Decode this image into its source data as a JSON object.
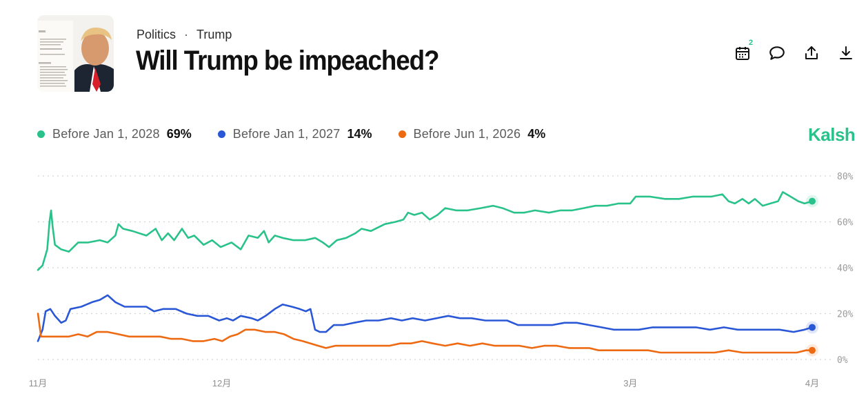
{
  "header": {
    "breadcrumb": [
      "Politics",
      "Trump"
    ],
    "breadcrumb_separator": "·",
    "title": "Will Trump be impeached?",
    "thumbnail_alt": "Trump photo with document"
  },
  "actions": {
    "calendar_badge": "2",
    "icons": [
      "calendar-icon",
      "comment-icon",
      "share-icon",
      "download-icon"
    ]
  },
  "brand": "Kalsh",
  "colors": {
    "green": "#28c28a",
    "blue": "#2a57d6",
    "orange": "#ee6a12",
    "grid": "#d4d4d4"
  },
  "chart_data": {
    "type": "line",
    "y_ticks": [
      "80%",
      "60%",
      "40%",
      "20%",
      "0%"
    ],
    "y_tick_values": [
      80,
      60,
      40,
      20,
      0
    ],
    "ylim": [
      0,
      80
    ],
    "x_ticks": [
      {
        "label": "11月",
        "t": 0.0
      },
      {
        "label": "12月",
        "t": 0.2373
      },
      {
        "label": "3月",
        "t": 0.7652
      },
      {
        "label": "4月",
        "t": 1.0
      }
    ],
    "legend_position": "top-left",
    "series": [
      {
        "name": "Before Jan 1, 2028",
        "display": "69%",
        "color": "#28c28a",
        "last": 69,
        "points": [
          [
            0.0,
            39
          ],
          [
            0.006,
            41
          ],
          [
            0.012,
            48
          ],
          [
            0.015,
            60
          ],
          [
            0.017,
            65
          ],
          [
            0.019,
            58
          ],
          [
            0.022,
            50
          ],
          [
            0.03,
            48
          ],
          [
            0.04,
            47
          ],
          [
            0.052,
            51
          ],
          [
            0.065,
            51
          ],
          [
            0.08,
            52
          ],
          [
            0.09,
            51
          ],
          [
            0.1,
            54
          ],
          [
            0.104,
            59
          ],
          [
            0.11,
            57
          ],
          [
            0.122,
            56
          ],
          [
            0.14,
            54
          ],
          [
            0.152,
            57
          ],
          [
            0.16,
            52
          ],
          [
            0.168,
            55
          ],
          [
            0.176,
            52
          ],
          [
            0.186,
            57
          ],
          [
            0.194,
            53
          ],
          [
            0.202,
            54
          ],
          [
            0.214,
            50
          ],
          [
            0.225,
            52
          ],
          [
            0.236,
            49
          ],
          [
            0.25,
            51
          ],
          [
            0.262,
            48
          ],
          [
            0.272,
            54
          ],
          [
            0.284,
            53
          ],
          [
            0.292,
            56
          ],
          [
            0.298,
            51
          ],
          [
            0.306,
            54
          ],
          [
            0.316,
            53
          ],
          [
            0.33,
            52
          ],
          [
            0.345,
            52
          ],
          [
            0.358,
            53
          ],
          [
            0.368,
            51
          ],
          [
            0.376,
            49
          ],
          [
            0.386,
            52
          ],
          [
            0.398,
            53
          ],
          [
            0.41,
            55
          ],
          [
            0.418,
            57
          ],
          [
            0.43,
            56
          ],
          [
            0.448,
            59
          ],
          [
            0.462,
            60
          ],
          [
            0.472,
            61
          ],
          [
            0.478,
            64
          ],
          [
            0.486,
            63
          ],
          [
            0.496,
            64
          ],
          [
            0.506,
            61
          ],
          [
            0.516,
            63
          ],
          [
            0.526,
            66
          ],
          [
            0.54,
            65
          ],
          [
            0.555,
            65
          ],
          [
            0.572,
            66
          ],
          [
            0.588,
            67
          ],
          [
            0.6,
            66
          ],
          [
            0.615,
            64
          ],
          [
            0.628,
            64
          ],
          [
            0.642,
            65
          ],
          [
            0.66,
            64
          ],
          [
            0.675,
            65
          ],
          [
            0.69,
            65
          ],
          [
            0.705,
            66
          ],
          [
            0.72,
            67
          ],
          [
            0.735,
            67
          ],
          [
            0.75,
            68
          ],
          [
            0.765,
            68
          ],
          [
            0.772,
            71
          ],
          [
            0.79,
            71
          ],
          [
            0.81,
            70
          ],
          [
            0.828,
            70
          ],
          [
            0.846,
            71
          ],
          [
            0.87,
            71
          ],
          [
            0.884,
            72
          ],
          [
            0.892,
            69
          ],
          [
            0.9,
            68
          ],
          [
            0.91,
            70
          ],
          [
            0.918,
            68
          ],
          [
            0.926,
            70
          ],
          [
            0.936,
            67
          ],
          [
            0.946,
            68
          ],
          [
            0.956,
            69
          ],
          [
            0.962,
            73
          ],
          [
            0.972,
            71
          ],
          [
            0.982,
            69
          ],
          [
            0.99,
            68
          ],
          [
            1.0,
            69
          ]
        ]
      },
      {
        "name": "Before Jan 1, 2027",
        "display": "14%",
        "color": "#2a57d6",
        "last": 14,
        "points": [
          [
            0.0,
            8
          ],
          [
            0.006,
            13
          ],
          [
            0.01,
            21
          ],
          [
            0.016,
            22
          ],
          [
            0.022,
            19
          ],
          [
            0.03,
            16
          ],
          [
            0.036,
            17
          ],
          [
            0.042,
            22
          ],
          [
            0.056,
            23
          ],
          [
            0.07,
            25
          ],
          [
            0.08,
            26
          ],
          [
            0.09,
            28
          ],
          [
            0.1,
            25
          ],
          [
            0.112,
            23
          ],
          [
            0.126,
            23
          ],
          [
            0.14,
            23
          ],
          [
            0.15,
            21
          ],
          [
            0.162,
            22
          ],
          [
            0.178,
            22
          ],
          [
            0.192,
            20
          ],
          [
            0.206,
            19
          ],
          [
            0.22,
            19
          ],
          [
            0.234,
            17
          ],
          [
            0.244,
            18
          ],
          [
            0.252,
            17
          ],
          [
            0.262,
            19
          ],
          [
            0.276,
            18
          ],
          [
            0.284,
            17
          ],
          [
            0.294,
            19
          ],
          [
            0.306,
            22
          ],
          [
            0.316,
            24
          ],
          [
            0.328,
            23
          ],
          [
            0.338,
            22
          ],
          [
            0.346,
            21
          ],
          [
            0.352,
            22
          ],
          [
            0.358,
            13
          ],
          [
            0.364,
            12
          ],
          [
            0.372,
            12
          ],
          [
            0.382,
            15
          ],
          [
            0.394,
            15
          ],
          [
            0.408,
            16
          ],
          [
            0.424,
            17
          ],
          [
            0.44,
            17
          ],
          [
            0.456,
            18
          ],
          [
            0.47,
            17
          ],
          [
            0.484,
            18
          ],
          [
            0.5,
            17
          ],
          [
            0.515,
            18
          ],
          [
            0.53,
            19
          ],
          [
            0.545,
            18
          ],
          [
            0.56,
            18
          ],
          [
            0.578,
            17
          ],
          [
            0.592,
            17
          ],
          [
            0.606,
            17
          ],
          [
            0.62,
            15
          ],
          [
            0.634,
            15
          ],
          [
            0.65,
            15
          ],
          [
            0.664,
            15
          ],
          [
            0.68,
            16
          ],
          [
            0.696,
            16
          ],
          [
            0.712,
            15
          ],
          [
            0.728,
            14
          ],
          [
            0.744,
            13
          ],
          [
            0.76,
            13
          ],
          [
            0.776,
            13
          ],
          [
            0.794,
            14
          ],
          [
            0.812,
            14
          ],
          [
            0.83,
            14
          ],
          [
            0.85,
            14
          ],
          [
            0.868,
            13
          ],
          [
            0.886,
            14
          ],
          [
            0.904,
            13
          ],
          [
            0.922,
            13
          ],
          [
            0.94,
            13
          ],
          [
            0.958,
            13
          ],
          [
            0.976,
            12
          ],
          [
            0.99,
            13
          ],
          [
            1.0,
            14
          ]
        ]
      },
      {
        "name": "Before Jun 1, 2026",
        "display": "4%",
        "color": "#ee6a12",
        "last": 4,
        "points": [
          [
            0.0,
            20
          ],
          [
            0.004,
            10
          ],
          [
            0.01,
            10
          ],
          [
            0.018,
            10
          ],
          [
            0.028,
            10
          ],
          [
            0.04,
            10
          ],
          [
            0.052,
            11
          ],
          [
            0.064,
            10
          ],
          [
            0.076,
            12
          ],
          [
            0.09,
            12
          ],
          [
            0.104,
            11
          ],
          [
            0.118,
            10
          ],
          [
            0.13,
            10
          ],
          [
            0.144,
            10
          ],
          [
            0.158,
            10
          ],
          [
            0.172,
            9
          ],
          [
            0.186,
            9
          ],
          [
            0.2,
            8
          ],
          [
            0.214,
            8
          ],
          [
            0.228,
            9
          ],
          [
            0.238,
            8
          ],
          [
            0.248,
            10
          ],
          [
            0.258,
            11
          ],
          [
            0.268,
            13
          ],
          [
            0.28,
            13
          ],
          [
            0.294,
            12
          ],
          [
            0.306,
            12
          ],
          [
            0.318,
            11
          ],
          [
            0.33,
            9
          ],
          [
            0.342,
            8
          ],
          [
            0.352,
            7
          ],
          [
            0.362,
            6
          ],
          [
            0.372,
            5
          ],
          [
            0.384,
            6
          ],
          [
            0.398,
            6
          ],
          [
            0.412,
            6
          ],
          [
            0.426,
            6
          ],
          [
            0.44,
            6
          ],
          [
            0.454,
            6
          ],
          [
            0.468,
            7
          ],
          [
            0.482,
            7
          ],
          [
            0.496,
            8
          ],
          [
            0.51,
            7
          ],
          [
            0.526,
            6
          ],
          [
            0.542,
            7
          ],
          [
            0.558,
            6
          ],
          [
            0.574,
            7
          ],
          [
            0.59,
            6
          ],
          [
            0.606,
            6
          ],
          [
            0.622,
            6
          ],
          [
            0.638,
            5
          ],
          [
            0.654,
            6
          ],
          [
            0.67,
            6
          ],
          [
            0.686,
            5
          ],
          [
            0.7,
            5
          ],
          [
            0.712,
            5
          ],
          [
            0.724,
            4
          ],
          [
            0.74,
            4
          ],
          [
            0.756,
            4
          ],
          [
            0.772,
            4
          ],
          [
            0.788,
            4
          ],
          [
            0.804,
            3
          ],
          [
            0.82,
            3
          ],
          [
            0.838,
            3
          ],
          [
            0.856,
            3
          ],
          [
            0.874,
            3
          ],
          [
            0.892,
            4
          ],
          [
            0.91,
            3
          ],
          [
            0.928,
            3
          ],
          [
            0.946,
            3
          ],
          [
            0.964,
            3
          ],
          [
            0.98,
            3
          ],
          [
            0.992,
            4
          ],
          [
            1.0,
            4
          ]
        ]
      }
    ]
  }
}
